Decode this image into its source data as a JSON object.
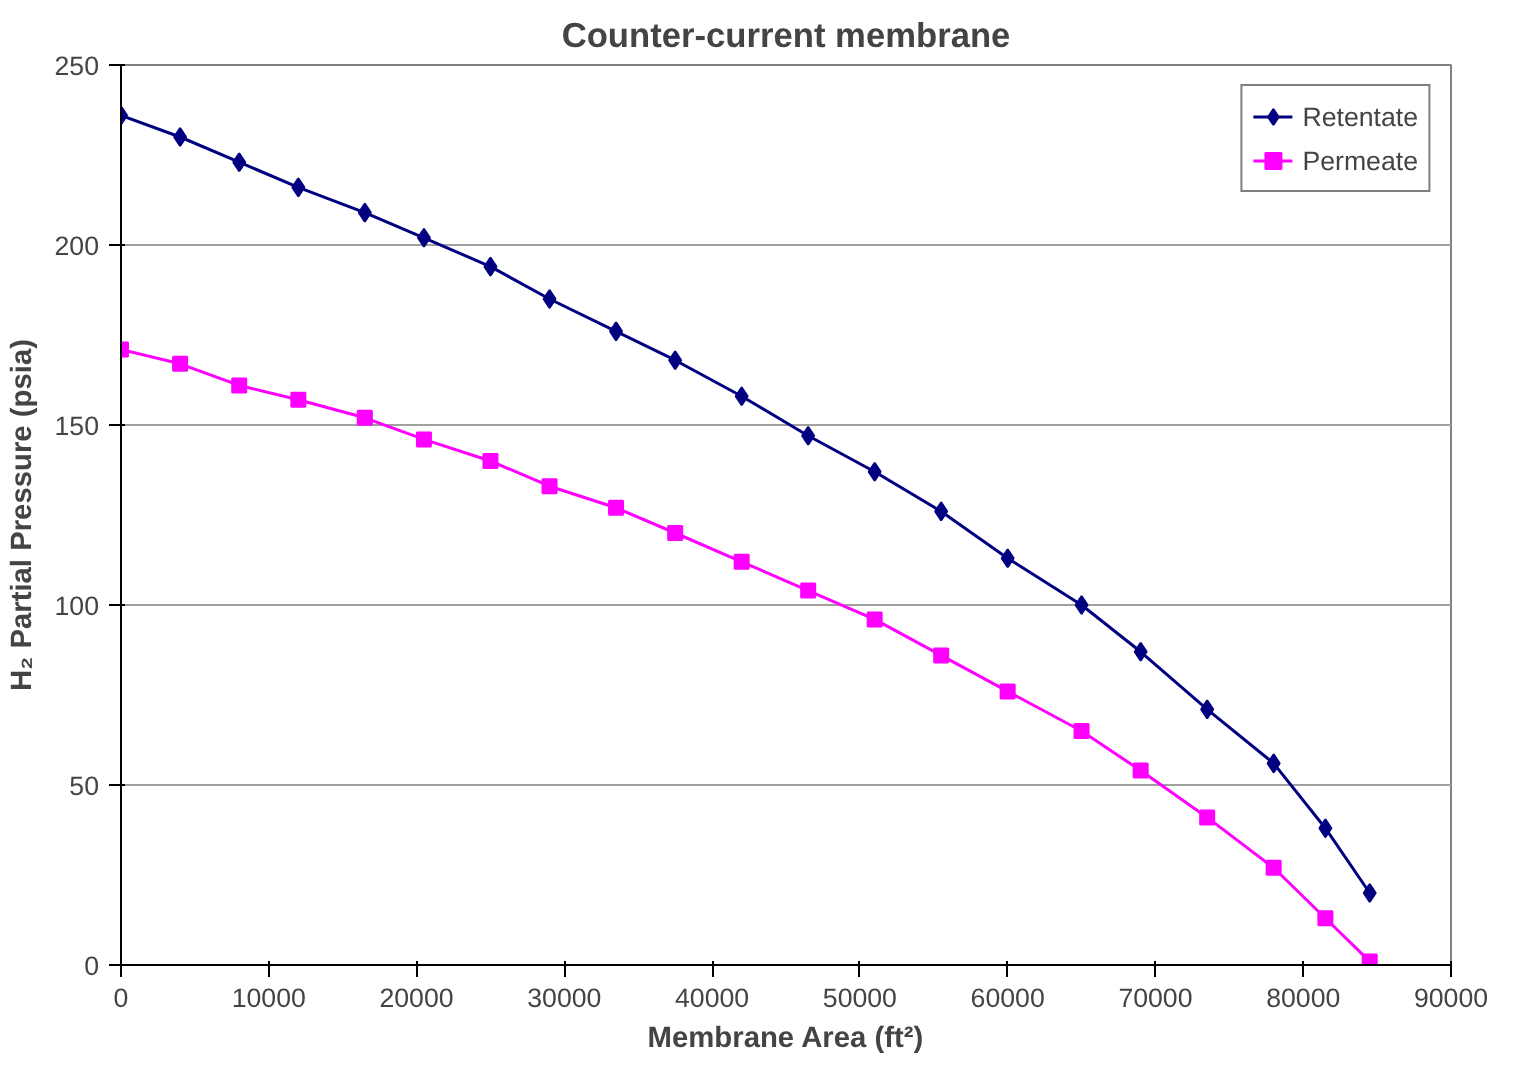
{
  "chart_data": {
    "type": "line",
    "title": "Counter-current membrane",
    "xlabel": "Membrane Area (ft²)",
    "ylabel": "H₂ Partial Pressure (psia)",
    "x": [
      0,
      4000,
      8000,
      12000,
      16500,
      20500,
      25000,
      29000,
      33500,
      37500,
      42000,
      46500,
      51000,
      55500,
      60000,
      65000,
      69000,
      73500,
      78000,
      81500,
      84500
    ],
    "series": [
      {
        "name": "Retentate",
        "color": "#000080",
        "marker": "diamond",
        "values": [
          236,
          230,
          223,
          216,
          209,
          202,
          194,
          185,
          176,
          168,
          158,
          147,
          137,
          126,
          113,
          100,
          87,
          71,
          56,
          38,
          20
        ]
      },
      {
        "name": "Permeate",
        "color": "#ff00ff",
        "marker": "square",
        "values": [
          171,
          167,
          161,
          157,
          152,
          146,
          140,
          133,
          127,
          120,
          112,
          104,
          96,
          86,
          76,
          65,
          54,
          41,
          27,
          13,
          1
        ]
      }
    ],
    "xlim": [
      0,
      90000
    ],
    "xticks": [
      0,
      10000,
      20000,
      30000,
      40000,
      50000,
      60000,
      70000,
      80000,
      90000
    ],
    "ylim": [
      0,
      250
    ],
    "yticks": [
      0,
      50,
      100,
      150,
      200,
      250
    ],
    "grid": "y",
    "legend": "top right"
  }
}
